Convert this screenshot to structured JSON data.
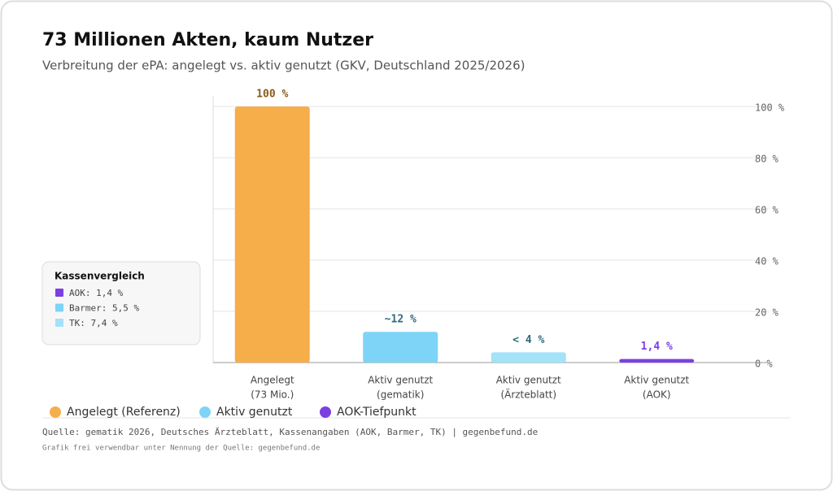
{
  "chart_data": {
    "type": "bar",
    "title": "73 Millionen Akten, kaum Nutzer",
    "subtitle": "Verbreitung der ePA: angelegt vs. aktiv genutzt (GKV, Deutschland 2025/2026)",
    "categories": [
      [
        "Angelegt",
        "(73 Mio.)"
      ],
      [
        "Aktiv genutzt",
        "(gematik)"
      ],
      [
        "Aktiv genutzt",
        "(Ärzteblatt)"
      ],
      [
        "Aktiv genutzt",
        "(AOK)"
      ]
    ],
    "values": [
      100,
      12,
      4,
      1.4
    ],
    "value_labels": [
      "100 %",
      "~12 %",
      "< 4 %",
      "1,4 %"
    ],
    "colors": [
      "#f6ae4b",
      "#7dd4f6",
      "#a3e2f7",
      "#7c3fe0"
    ],
    "label_colors": [
      "#8a5a1a",
      "#2f6b7c",
      "#2f6b7c",
      "#7c3fe0"
    ],
    "ylim": [
      0,
      100
    ],
    "yticks": [
      {
        "value": 0,
        "label": "0 %"
      },
      {
        "value": 20,
        "label": "20 %"
      },
      {
        "value": 40,
        "label": "40 %"
      },
      {
        "value": 60,
        "label": "60 %"
      },
      {
        "value": 80,
        "label": "80 %"
      },
      {
        "value": 100,
        "label": "100 %"
      }
    ],
    "grid": true,
    "legend": [
      {
        "name": "Angelegt (Referenz)",
        "color": "#f6ae4b"
      },
      {
        "name": "Aktiv genutzt",
        "color": "#7dd4f6"
      },
      {
        "name": "AOK-Tiefpunkt",
        "color": "#7c3fe0"
      }
    ],
    "comparison_box": {
      "title": "Kassenvergleich",
      "items": [
        {
          "label": "AOK: 1,4 %",
          "color": "#7c3fe0"
        },
        {
          "label": "Barmer: 5,5 %",
          "color": "#7dd4f6"
        },
        {
          "label": "TK: 7,4 %",
          "color": "#a3e2f7"
        }
      ]
    },
    "source": "Quelle: gematik 2026, Deutsches Ärzteblatt, Kassenangaben (AOK, Barmer, TK) | gegenbefund.de",
    "note": "Grafik frei verwendbar unter Nennung der Quelle: gegenbefund.de"
  }
}
